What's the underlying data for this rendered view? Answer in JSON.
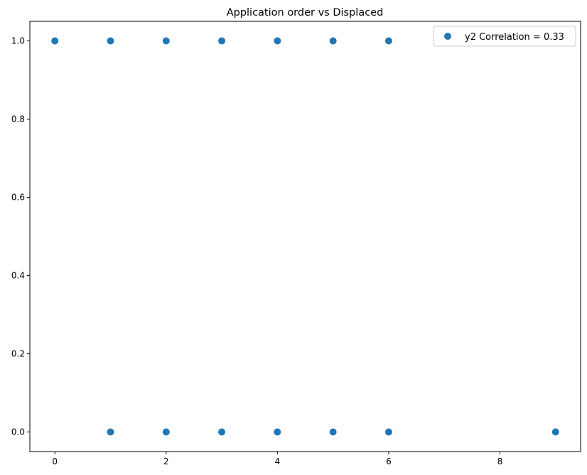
{
  "chart_data": {
    "type": "scatter",
    "title": "Application order vs Displaced",
    "xlabel": "",
    "ylabel": "",
    "xlim": [
      -0.45,
      9.45
    ],
    "ylim": [
      -0.05,
      1.05
    ],
    "x_ticks": [
      0,
      2,
      4,
      6,
      8
    ],
    "x_tick_labels": [
      "0",
      "2",
      "4",
      "6",
      "8"
    ],
    "y_ticks": [
      0.0,
      0.2,
      0.4,
      0.6,
      0.8,
      1.0
    ],
    "y_tick_labels": [
      "0.0",
      "0.2",
      "0.4",
      "0.6",
      "0.8",
      "1.0"
    ],
    "grid": false,
    "legend_position": "top-right",
    "series": [
      {
        "name": "y2 Correlation = 0.33",
        "color": "#1f77b4",
        "points": [
          {
            "x": 0,
            "y": 1
          },
          {
            "x": 1,
            "y": 1
          },
          {
            "x": 2,
            "y": 1
          },
          {
            "x": 3,
            "y": 1
          },
          {
            "x": 4,
            "y": 1
          },
          {
            "x": 5,
            "y": 1
          },
          {
            "x": 6,
            "y": 1
          },
          {
            "x": 1,
            "y": 0
          },
          {
            "x": 2,
            "y": 0
          },
          {
            "x": 3,
            "y": 0
          },
          {
            "x": 4,
            "y": 0
          },
          {
            "x": 5,
            "y": 0
          },
          {
            "x": 6,
            "y": 0
          },
          {
            "x": 9,
            "y": 0
          }
        ]
      }
    ]
  }
}
